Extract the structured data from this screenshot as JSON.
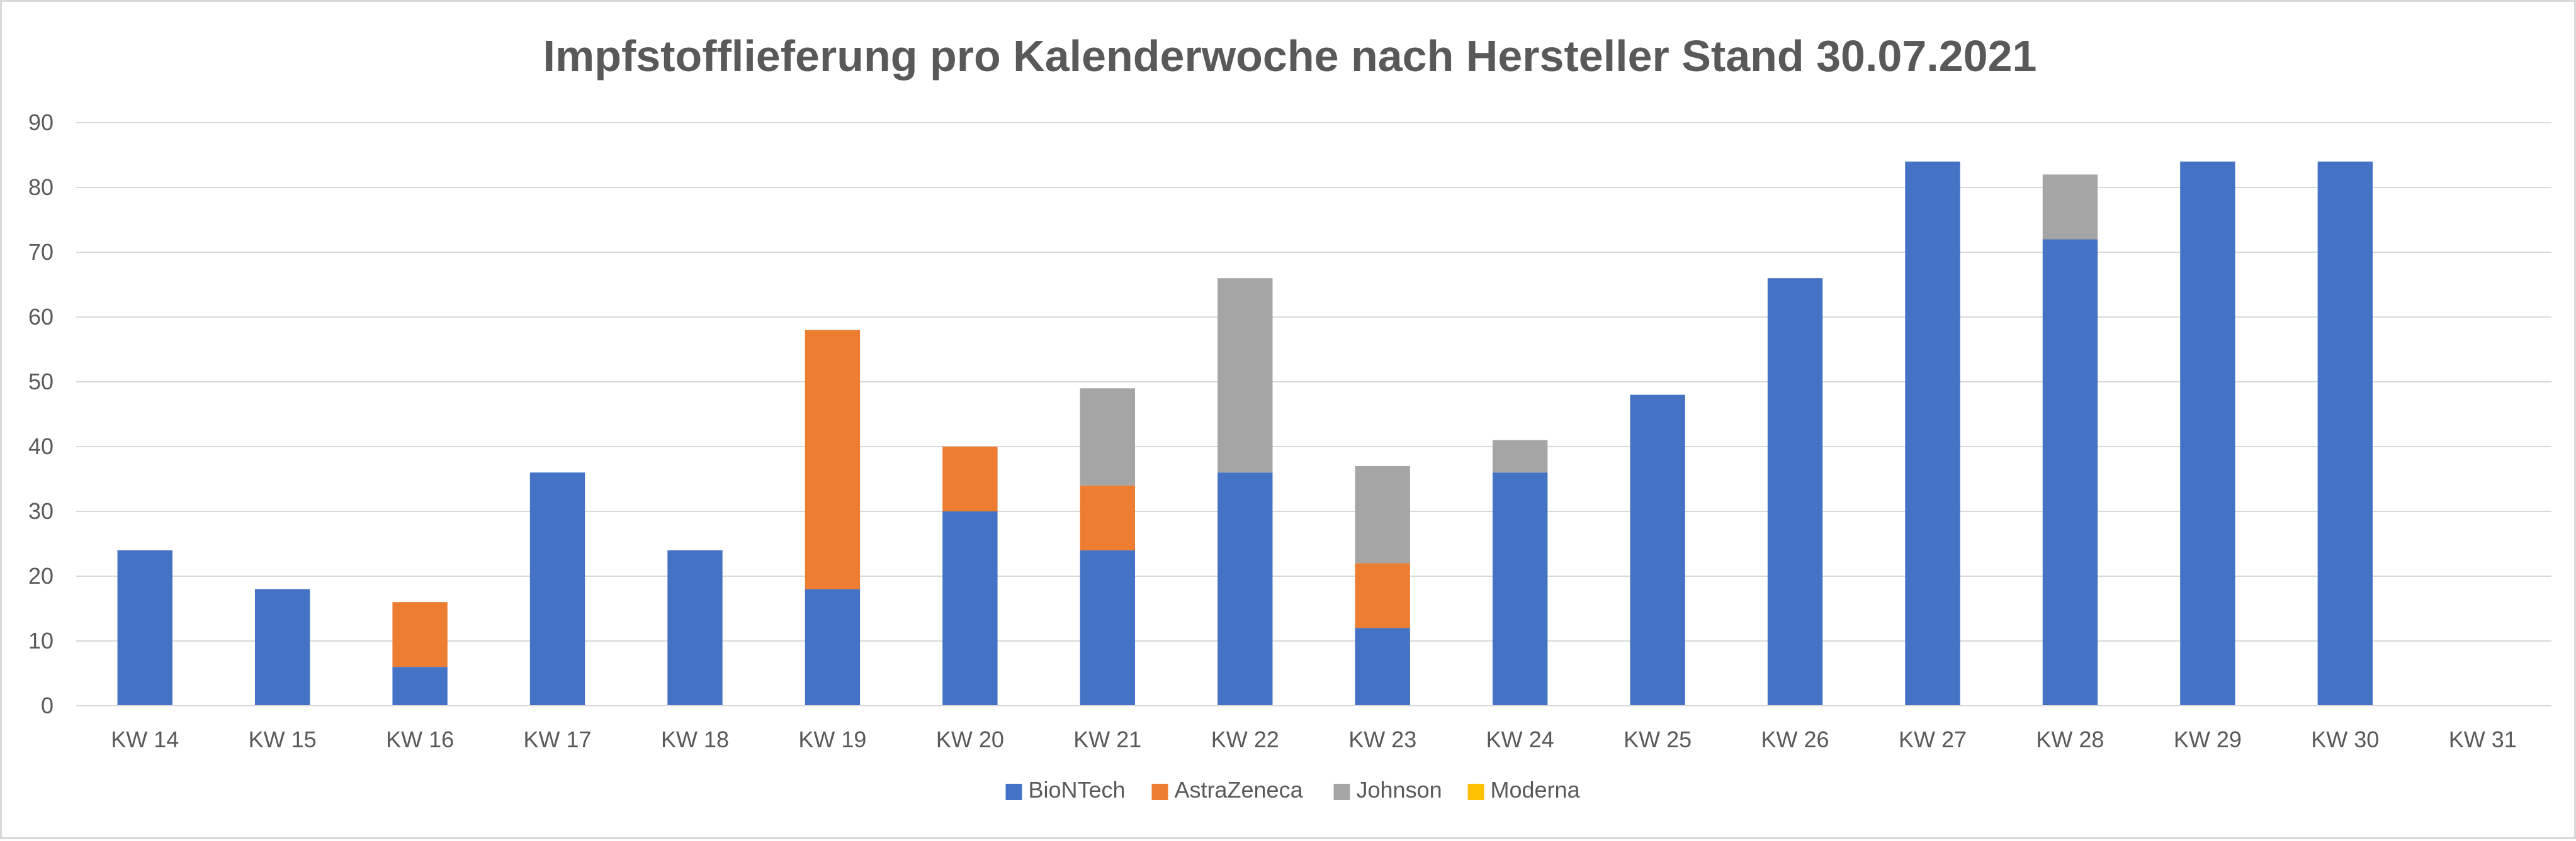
{
  "chart_data": {
    "type": "bar",
    "stacked": true,
    "title": "Impfstofflieferung pro Kalenderwoche nach Hersteller Stand 30.07.2021",
    "xlabel": "",
    "ylabel": "",
    "categories": [
      "KW 14",
      "KW 15",
      "KW 16",
      "KW 17",
      "KW 18",
      "KW 19",
      "KW 20",
      "KW 21",
      "KW 22",
      "KW 23",
      "KW 24",
      "KW 25",
      "KW 26",
      "KW 27",
      "KW 28",
      "KW 29",
      "KW 30",
      "KW 31"
    ],
    "series": [
      {
        "name": "BioNTech",
        "color": "#4472c4",
        "values": [
          24,
          18,
          6,
          36,
          24,
          18,
          30,
          24,
          36,
          12,
          36,
          48,
          66,
          84,
          72,
          84,
          84,
          0
        ]
      },
      {
        "name": "AstraZeneca",
        "color": "#ed7d31",
        "values": [
          0,
          0,
          10,
          0,
          0,
          40,
          10,
          10,
          0,
          10,
          0,
          0,
          0,
          0,
          0,
          0,
          0,
          0
        ]
      },
      {
        "name": "Johnson",
        "color": "#a5a5a5",
        "values": [
          0,
          0,
          0,
          0,
          0,
          0,
          0,
          15,
          30,
          15,
          5,
          0,
          0,
          0,
          10,
          0,
          0,
          0
        ]
      },
      {
        "name": "Moderna",
        "color": "#ffc000",
        "values": [
          0,
          0,
          0,
          0,
          0,
          0,
          0,
          0,
          0,
          0,
          0,
          0,
          0,
          0,
          0,
          0,
          0,
          0
        ]
      }
    ],
    "ylim": [
      0,
      90
    ],
    "yticks": [
      "0",
      "10",
      "20",
      "30",
      "40",
      "50",
      "60",
      "70",
      "80",
      "90"
    ],
    "grid": true,
    "legend_position": "bottom-center",
    "gridline_color": "#d9d9d9"
  }
}
